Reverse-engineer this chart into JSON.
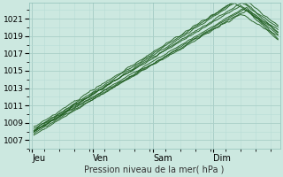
{
  "title": "",
  "xlabel": "Pression niveau de la mer( hPa )",
  "background_color": "#cce8e0",
  "plot_bg_color": "#cce8e0",
  "grid_major_color": "#aacfc8",
  "grid_minor_color": "#b8ddd6",
  "line_color": "#1e5c1e",
  "yticks": [
    1007,
    1009,
    1011,
    1013,
    1015,
    1017,
    1019,
    1021
  ],
  "ylim": [
    1006.0,
    1022.8
  ],
  "xlim": [
    0.0,
    4.15
  ],
  "day_labels": [
    "Jeu",
    "Ven",
    "Sam",
    "Dim"
  ],
  "day_positions": [
    0.05,
    1.05,
    2.05,
    3.05
  ],
  "vline_positions": [
    0.05,
    1.05,
    2.05,
    3.05
  ]
}
